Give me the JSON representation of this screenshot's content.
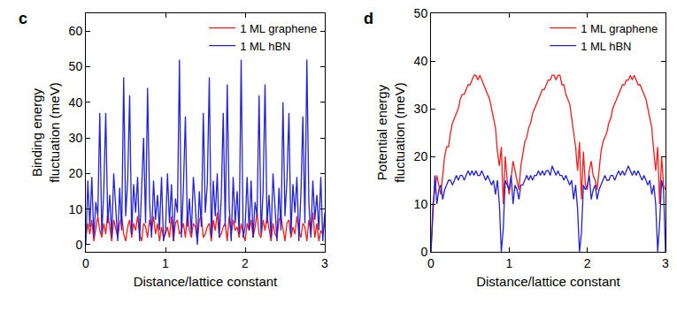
{
  "chart_data": [
    {
      "type": "line",
      "title": "c",
      "x_label": "Distance/lattice constant",
      "y_label": "Binding energy\nfluctuation (meV)",
      "x": [
        0,
        0.025,
        0.05,
        0.075,
        0.1,
        0.125,
        0.15,
        0.175,
        0.2,
        0.225,
        0.25,
        0.275,
        0.3,
        0.325,
        0.35,
        0.375,
        0.4,
        0.425,
        0.45,
        0.475,
        0.5,
        0.525,
        0.55,
        0.575,
        0.6,
        0.625,
        0.65,
        0.675,
        0.7,
        0.725,
        0.75,
        0.775,
        0.8,
        0.825,
        0.85,
        0.875,
        0.9,
        0.925,
        0.95,
        0.975,
        1,
        1.025,
        1.05,
        1.075,
        1.1,
        1.125,
        1.15,
        1.175,
        1.2,
        1.225,
        1.25,
        1.275,
        1.3,
        1.325,
        1.35,
        1.375,
        1.4,
        1.425,
        1.45,
        1.475,
        1.5,
        1.525,
        1.55,
        1.575,
        1.6,
        1.625,
        1.65,
        1.675,
        1.7,
        1.725,
        1.75,
        1.775,
        1.8,
        1.825,
        1.85,
        1.875,
        1.9,
        1.925,
        1.95,
        1.975,
        2,
        2.025,
        2.05,
        2.075,
        2.1,
        2.125,
        2.15,
        2.175,
        2.2,
        2.225,
        2.25,
        2.275,
        2.3,
        2.325,
        2.35,
        2.375,
        2.4,
        2.425,
        2.45,
        2.475,
        2.5,
        2.525,
        2.55,
        2.575,
        2.6,
        2.625,
        2.65,
        2.675,
        2.7,
        2.725,
        2.75,
        2.775,
        2.8,
        2.825,
        2.85,
        2.875,
        2.9,
        2.925,
        2.95,
        2.975,
        3
      ],
      "series": [
        {
          "name": "1 ML graphene",
          "color": "#ff1a1a",
          "values": [
            2,
            6,
            3,
            7,
            1,
            5,
            8,
            4,
            2,
            6,
            3,
            9,
            5,
            1,
            7,
            4,
            2,
            6,
            8,
            3,
            1,
            5,
            7,
            2,
            6,
            4,
            8,
            3,
            1,
            6,
            5,
            2,
            7,
            4,
            8,
            3,
            6,
            1,
            5,
            2,
            3,
            5,
            2,
            8,
            1,
            6,
            7,
            3,
            4,
            6,
            2,
            9,
            4,
            2,
            6,
            5,
            1,
            7,
            8,
            2,
            3,
            5,
            6,
            1,
            7,
            4,
            9,
            2,
            3,
            5,
            6,
            1,
            8,
            3,
            7,
            4,
            5,
            2,
            6,
            3,
            1,
            6,
            4,
            7,
            2,
            5,
            9,
            3,
            2,
            7,
            4,
            8,
            5,
            1,
            6,
            3,
            2,
            7,
            8,
            4,
            1,
            6,
            7,
            2,
            5,
            3,
            8,
            4,
            2,
            6,
            5,
            1,
            7,
            3,
            9,
            2,
            6,
            1,
            4,
            3,
            7
          ]
        },
        {
          "name": "1 ML hBN",
          "color": "#2222dd",
          "values": [
            0,
            18,
            5,
            19,
            2,
            12,
            8,
            37,
            3,
            15,
            37,
            6,
            14,
            2,
            20,
            10,
            1,
            16,
            4,
            47,
            8,
            18,
            42,
            3,
            17,
            9,
            19,
            1,
            14,
            30,
            6,
            44,
            12,
            2,
            18,
            7,
            14,
            4,
            19,
            1,
            4,
            20,
            6,
            17,
            1,
            13,
            9,
            52,
            2,
            16,
            36,
            5,
            13,
            3,
            19,
            11,
            0,
            15,
            5,
            37,
            9,
            17,
            47,
            2,
            18,
            8,
            20,
            2,
            13,
            37,
            5,
            45,
            11,
            1,
            19,
            6,
            15,
            3,
            52,
            2,
            5,
            19,
            4,
            18,
            2,
            12,
            8,
            42,
            3,
            15,
            45,
            6,
            14,
            2,
            20,
            10,
            1,
            16,
            4,
            40,
            8,
            18,
            37,
            3,
            17,
            9,
            19,
            1,
            14,
            36,
            6,
            52,
            12,
            2,
            18,
            7,
            14,
            4,
            19,
            1,
            9
          ]
        }
      ],
      "xlim": [
        0,
        3
      ],
      "ylim": [
        -2,
        65
      ],
      "xticks": [
        0,
        1,
        2,
        3
      ],
      "yticks": [
        0,
        10,
        20,
        30,
        40,
        50,
        60
      ],
      "legend": "upper right"
    },
    {
      "type": "line",
      "title": "d",
      "x_label": "Distance/lattice constant",
      "y_label": "Potential energy\nfluctuation (meV)",
      "x": [
        0,
        0.025,
        0.05,
        0.075,
        0.1,
        0.125,
        0.15,
        0.175,
        0.2,
        0.225,
        0.25,
        0.275,
        0.3,
        0.325,
        0.35,
        0.375,
        0.4,
        0.425,
        0.45,
        0.475,
        0.5,
        0.525,
        0.55,
        0.575,
        0.6,
        0.625,
        0.65,
        0.675,
        0.7,
        0.725,
        0.75,
        0.775,
        0.8,
        0.825,
        0.85,
        0.875,
        0.9,
        0.925,
        0.95,
        0.975,
        1,
        1.025,
        1.05,
        1.075,
        1.1,
        1.125,
        1.15,
        1.175,
        1.2,
        1.225,
        1.25,
        1.275,
        1.3,
        1.325,
        1.35,
        1.375,
        1.4,
        1.425,
        1.45,
        1.475,
        1.5,
        1.525,
        1.55,
        1.575,
        1.6,
        1.625,
        1.65,
        1.675,
        1.7,
        1.725,
        1.75,
        1.775,
        1.8,
        1.825,
        1.85,
        1.875,
        1.9,
        1.925,
        1.95,
        1.975,
        2,
        2.025,
        2.05,
        2.075,
        2.1,
        2.125,
        2.15,
        2.175,
        2.2,
        2.225,
        2.25,
        2.275,
        2.3,
        2.325,
        2.35,
        2.375,
        2.4,
        2.425,
        2.45,
        2.475,
        2.5,
        2.525,
        2.55,
        2.575,
        2.6,
        2.625,
        2.65,
        2.675,
        2.7,
        2.725,
        2.75,
        2.775,
        2.8,
        2.825,
        2.85,
        2.875,
        2.9,
        2.925,
        2.95,
        2.975,
        3
      ],
      "series": [
        {
          "name": "1 ML graphene",
          "color": "#ff1a1a",
          "values": [
            0,
            10,
            13,
            16,
            14,
            12,
            16,
            20,
            22,
            22,
            25,
            27,
            28,
            29,
            30,
            32,
            33,
            33,
            34,
            35,
            35,
            36,
            37,
            37,
            36,
            37,
            36,
            35,
            34,
            33,
            32,
            30,
            28,
            26,
            21,
            18,
            22,
            10,
            20,
            15,
            12,
            16,
            19,
            17,
            15,
            13,
            18,
            21,
            23,
            24,
            26,
            27,
            29,
            30,
            31,
            32,
            33,
            34,
            34,
            35,
            36,
            36,
            37,
            37,
            36,
            37,
            37,
            35,
            35,
            33,
            32,
            31,
            28,
            25,
            22,
            17,
            23,
            11,
            21,
            14,
            13,
            17,
            19,
            16,
            15,
            13,
            17,
            21,
            23,
            24,
            25,
            27,
            28,
            30,
            31,
            32,
            33,
            34,
            35,
            35,
            36,
            36,
            37,
            36,
            37,
            36,
            35,
            35,
            34,
            33,
            32,
            30,
            28,
            26,
            21,
            17,
            22,
            10,
            20,
            14,
            13
          ]
        },
        {
          "name": "1 ML hBN",
          "color": "#2222dd",
          "values": [
            0,
            8,
            16,
            10,
            13,
            14,
            11,
            13,
            14,
            15,
            15,
            14,
            15,
            16,
            15,
            16,
            16,
            15,
            16,
            17,
            16,
            17,
            16,
            17,
            16,
            16,
            17,
            16,
            15,
            16,
            15,
            14,
            15,
            12,
            15,
            10,
            0,
            5,
            15,
            14,
            13,
            16,
            10,
            14,
            13,
            11,
            14,
            14,
            15,
            16,
            15,
            16,
            15,
            16,
            16,
            17,
            16,
            17,
            16,
            17,
            17,
            16,
            18,
            17,
            16,
            17,
            16,
            16,
            15,
            16,
            15,
            14,
            15,
            11,
            14,
            9,
            0,
            4,
            14,
            13,
            14,
            16,
            11,
            13,
            14,
            11,
            13,
            14,
            15,
            16,
            15,
            15,
            16,
            16,
            15,
            16,
            17,
            16,
            17,
            16,
            17,
            18,
            17,
            16,
            17,
            16,
            17,
            16,
            15,
            16,
            15,
            14,
            15,
            12,
            14,
            10,
            0,
            6,
            15,
            13,
            0
          ]
        }
      ],
      "xlim": [
        0,
        3
      ],
      "ylim": [
        0,
        50
      ],
      "xticks": [
        0,
        1,
        2,
        3
      ],
      "yticks": [
        0,
        10,
        20,
        30,
        40,
        50
      ],
      "legend": "upper right"
    }
  ]
}
